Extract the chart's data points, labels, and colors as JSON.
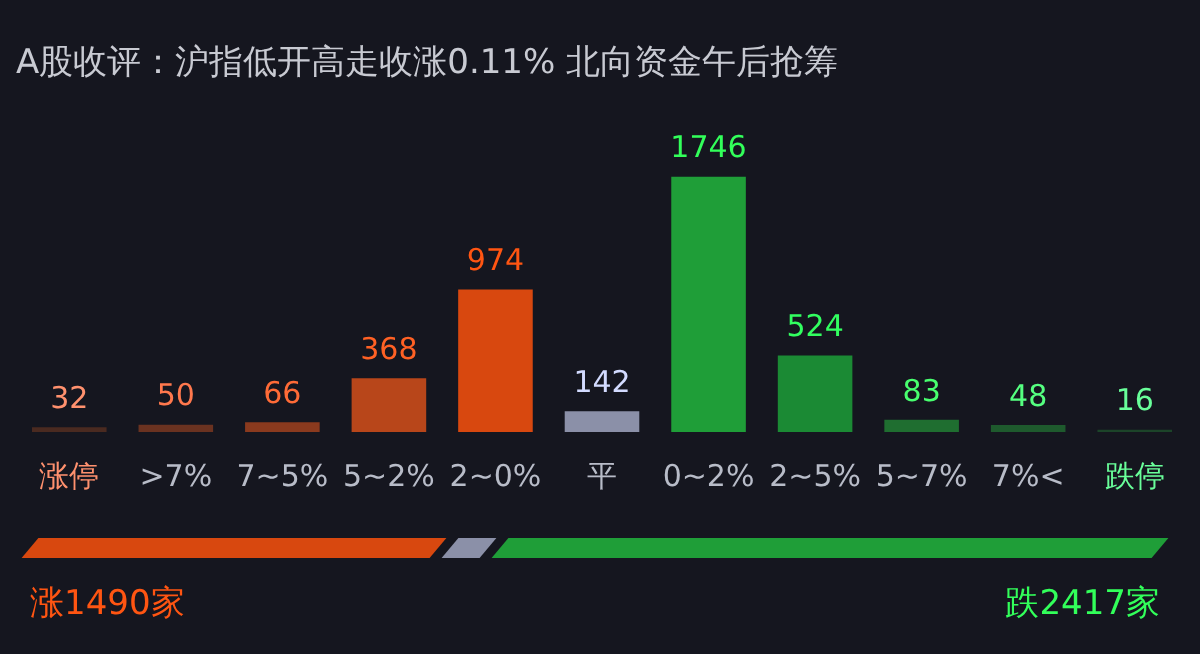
{
  "chart_data": {
    "type": "bar",
    "title": "A股收评：沪指低开高走收涨0.11% 北向资金午后抢筹",
    "categories": [
      "涨停",
      ">7%",
      "7~5%",
      "5~2%",
      "2~0%",
      "平",
      "0~2%",
      "2~5%",
      "5~7%",
      "7%<",
      "跌停"
    ],
    "values": [
      32,
      50,
      66,
      368,
      974,
      142,
      1746,
      524,
      83,
      48,
      16
    ],
    "colors": [
      "#4a2a20",
      "#6a3220",
      "#8a3a1e",
      "#b8461a",
      "#d8480f",
      "#8b90a8",
      "#1f9e38",
      "#1b8a34",
      "#1f6e30",
      "#1e5a2d",
      "#1c4429"
    ],
    "data_labels": true,
    "tick_labels": "x",
    "annotations": [
      "涨1490家",
      "跌2417家"
    ]
  }
}
